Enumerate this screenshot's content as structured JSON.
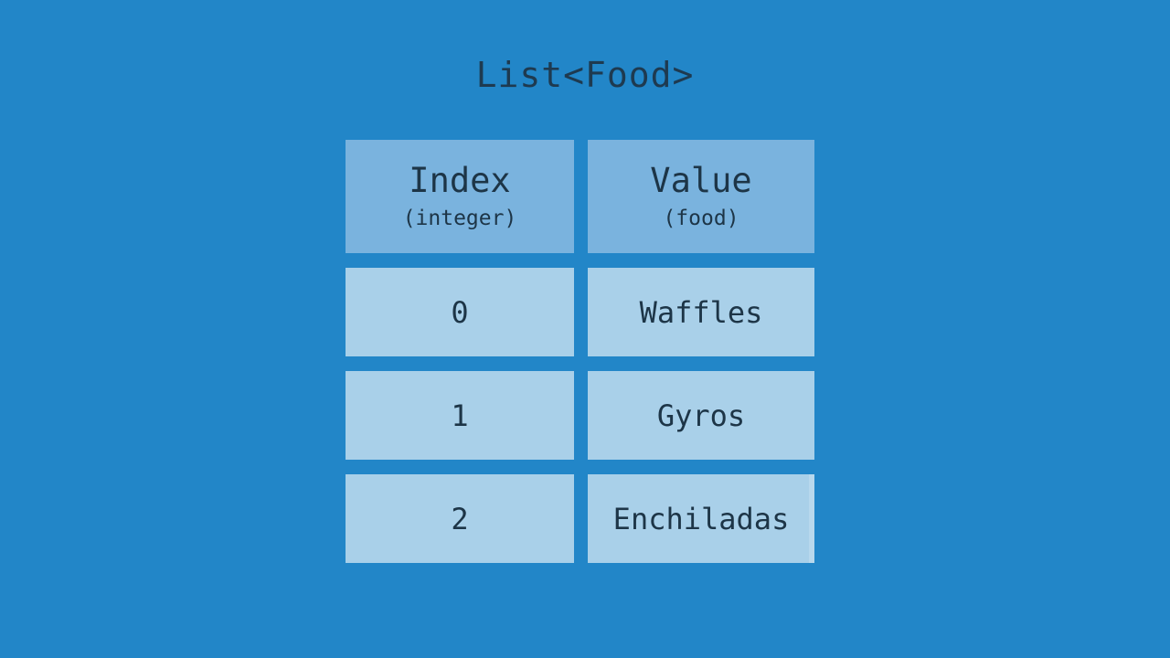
{
  "title": "List<Food>",
  "colors": {
    "background": "#2286c8",
    "header_cell": "#7ab3de",
    "data_cell": "#a9d0e9",
    "text": "#1d3547"
  },
  "table": {
    "columns": [
      {
        "name": "Index",
        "type_label": "(integer)"
      },
      {
        "name": "Value",
        "type_label": "(food)"
      }
    ],
    "rows": [
      {
        "index": "0",
        "value": "Waffles"
      },
      {
        "index": "1",
        "value": "Gyros"
      },
      {
        "index": "2",
        "value": "Enchiladas"
      }
    ]
  }
}
